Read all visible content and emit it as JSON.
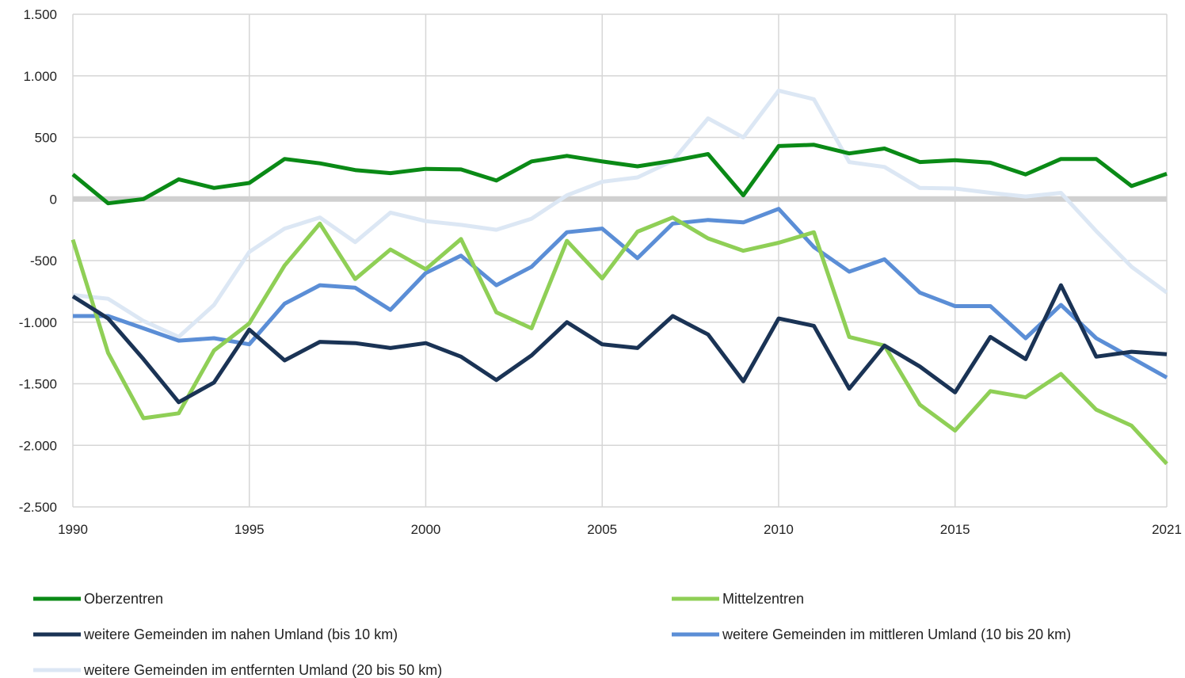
{
  "chart_data": {
    "type": "line",
    "title": "",
    "xlabel": "",
    "ylabel": "",
    "x": [
      1990,
      1991,
      1992,
      1993,
      1994,
      1995,
      1996,
      1997,
      1998,
      1999,
      2000,
      2001,
      2002,
      2003,
      2004,
      2005,
      2006,
      2007,
      2008,
      2009,
      2010,
      2011,
      2012,
      2013,
      2014,
      2015,
      2016,
      2017,
      2018,
      2019,
      2020,
      2021
    ],
    "xticks": [
      1990,
      1995,
      2000,
      2005,
      2010,
      2015,
      2021
    ],
    "xlim": [
      1990,
      2021
    ],
    "ylim": [
      -2500,
      1500
    ],
    "yticks": [
      1500,
      1000,
      500,
      0,
      -500,
      -1000,
      -1500,
      -2000,
      -2500
    ],
    "ytick_labels": [
      "1.500",
      "1.000",
      "500",
      "0",
      "-500",
      "-1.000",
      "-1.500",
      "-2.000",
      "-2.500"
    ],
    "grid": true,
    "zero_line": true,
    "legend_position": "bottom",
    "series": [
      {
        "name": "Oberzentren",
        "color": "#0a8a16",
        "values": [
          200,
          -35,
          0,
          160,
          90,
          130,
          325,
          290,
          235,
          210,
          245,
          240,
          150,
          305,
          350,
          305,
          265,
          310,
          365,
          30,
          430,
          440,
          370,
          410,
          300,
          315,
          295,
          200,
          325,
          325,
          105,
          205
        ]
      },
      {
        "name": "Mittelzentren",
        "color": "#8fcf56",
        "values": [
          -330,
          -1250,
          -1780,
          -1740,
          -1230,
          -1010,
          -540,
          -200,
          -650,
          -410,
          -570,
          -325,
          -920,
          -1050,
          -340,
          -645,
          -265,
          -150,
          -320,
          -420,
          -355,
          -270,
          -1120,
          -1190,
          -1670,
          -1880,
          -1560,
          -1610,
          -1420,
          -1710,
          -1840,
          -2150
        ]
      },
      {
        "name": "weitere Gemeinden im nahen Umland (bis 10 km)",
        "color": "#1a3355",
        "values": [
          -790,
          -970,
          -1300,
          -1650,
          -1490,
          -1060,
          -1310,
          -1160,
          -1170,
          -1210,
          -1170,
          -1280,
          -1470,
          -1270,
          -1000,
          -1180,
          -1210,
          -950,
          -1100,
          -1480,
          -970,
          -1030,
          -1540,
          -1190,
          -1360,
          -1570,
          -1120,
          -1300,
          -700,
          -1280,
          -1240,
          -1260
        ]
      },
      {
        "name": "weitere Gemeinden im mittleren Umland (10 bis 20 km)",
        "color": "#5b8ed6",
        "values": [
          -950,
          -950,
          -1050,
          -1150,
          -1130,
          -1180,
          -850,
          -700,
          -720,
          -900,
          -600,
          -460,
          -700,
          -550,
          -270,
          -240,
          -480,
          -200,
          -170,
          -190,
          -80,
          -390,
          -590,
          -490,
          -760,
          -870,
          -870,
          -1130,
          -860,
          -1130,
          -1290,
          -1450
        ]
      },
      {
        "name": "weitere Gemeinden im entfernten Umland (20 bis 50 km)",
        "color": "#dce7f4",
        "values": [
          -780,
          -810,
          -990,
          -1120,
          -860,
          -430,
          -240,
          -150,
          -350,
          -110,
          -180,
          -210,
          -250,
          -160,
          30,
          140,
          175,
          310,
          655,
          500,
          880,
          810,
          300,
          260,
          90,
          85,
          50,
          20,
          50,
          -260,
          -550,
          -760
        ]
      }
    ]
  }
}
